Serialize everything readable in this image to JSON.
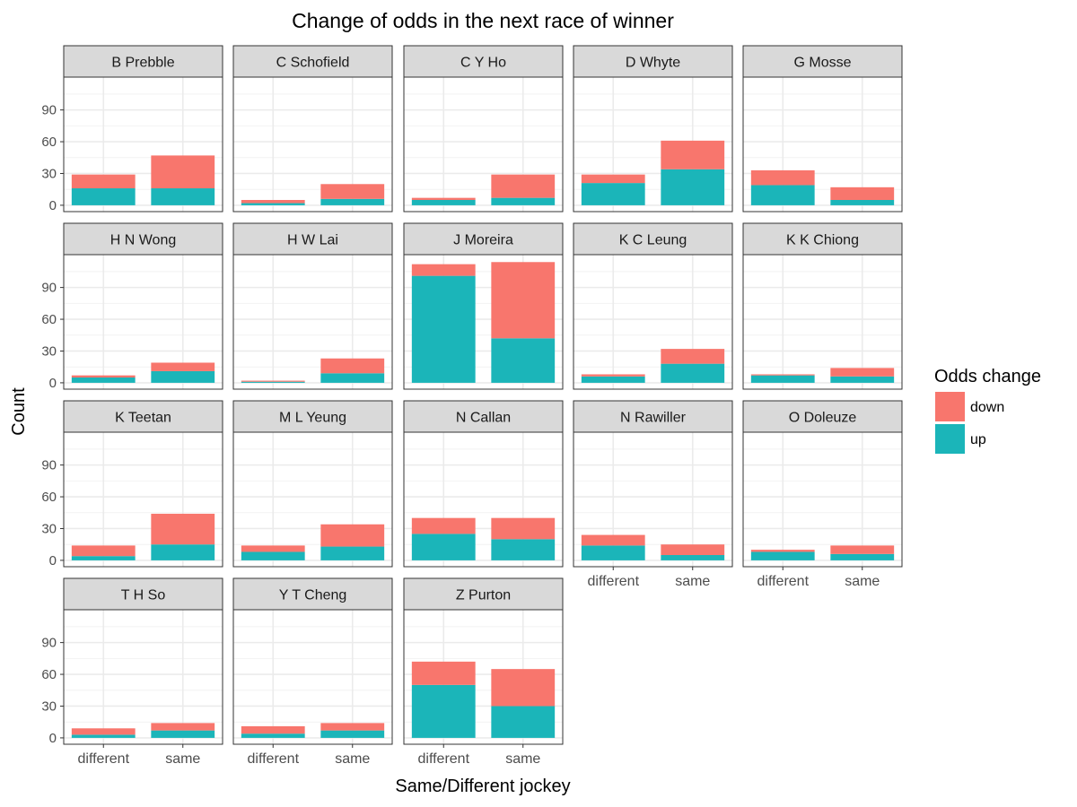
{
  "chart_data": {
    "type": "bar",
    "stacked": true,
    "title": "Change of odds in the next race of winner",
    "xlabel": "Same/Different jockey",
    "ylabel": "Count",
    "categories": [
      "different",
      "same"
    ],
    "y_ticks": [
      0,
      30,
      60,
      90
    ],
    "ylim": [
      -6,
      121
    ],
    "grid": true,
    "legend": {
      "title": "Odds change",
      "position": "right",
      "entries": [
        {
          "name": "down",
          "color": "#F8766D"
        },
        {
          "name": "up",
          "color": "#00BFC4"
        }
      ]
    },
    "colors": {
      "down": "#F8766D",
      "up": "#1BB5B9",
      "strip": "#D9D9D9",
      "grid": "#EBEBEB",
      "border": "#333333"
    },
    "facets": [
      {
        "jockey": "B Prebble",
        "up": [
          16,
          16
        ],
        "down": [
          13,
          31
        ]
      },
      {
        "jockey": "C Schofield",
        "up": [
          2,
          6
        ],
        "down": [
          3,
          14
        ]
      },
      {
        "jockey": "C Y Ho",
        "up": [
          5,
          7
        ],
        "down": [
          2,
          22
        ]
      },
      {
        "jockey": "D Whyte",
        "up": [
          21,
          34
        ],
        "down": [
          8,
          27
        ]
      },
      {
        "jockey": "G Mosse",
        "up": [
          19,
          5
        ],
        "down": [
          14,
          12
        ]
      },
      {
        "jockey": "H N Wong",
        "up": [
          5,
          11
        ],
        "down": [
          2,
          8
        ]
      },
      {
        "jockey": "H W Lai",
        "up": [
          1,
          9
        ],
        "down": [
          1,
          14
        ]
      },
      {
        "jockey": "J Moreira",
        "up": [
          101,
          42
        ],
        "down": [
          11,
          72
        ]
      },
      {
        "jockey": "K C Leung",
        "up": [
          6,
          18
        ],
        "down": [
          2,
          14
        ]
      },
      {
        "jockey": "K K Chiong",
        "up": [
          7,
          6
        ],
        "down": [
          1,
          8
        ]
      },
      {
        "jockey": "K Teetan",
        "up": [
          4,
          15
        ],
        "down": [
          10,
          29
        ]
      },
      {
        "jockey": "M L Yeung",
        "up": [
          8,
          13
        ],
        "down": [
          6,
          21
        ]
      },
      {
        "jockey": "N Callan",
        "up": [
          25,
          20
        ],
        "down": [
          15,
          20
        ]
      },
      {
        "jockey": "N Rawiller",
        "up": [
          14,
          5
        ],
        "down": [
          10,
          10
        ]
      },
      {
        "jockey": "O Doleuze",
        "up": [
          8,
          6
        ],
        "down": [
          2,
          8
        ]
      },
      {
        "jockey": "T H So",
        "up": [
          3,
          7
        ],
        "down": [
          6,
          7
        ]
      },
      {
        "jockey": "Y T Cheng",
        "up": [
          4,
          7
        ],
        "down": [
          7,
          7
        ]
      },
      {
        "jockey": "Z Purton",
        "up": [
          50,
          30
        ],
        "down": [
          22,
          35
        ]
      }
    ]
  }
}
